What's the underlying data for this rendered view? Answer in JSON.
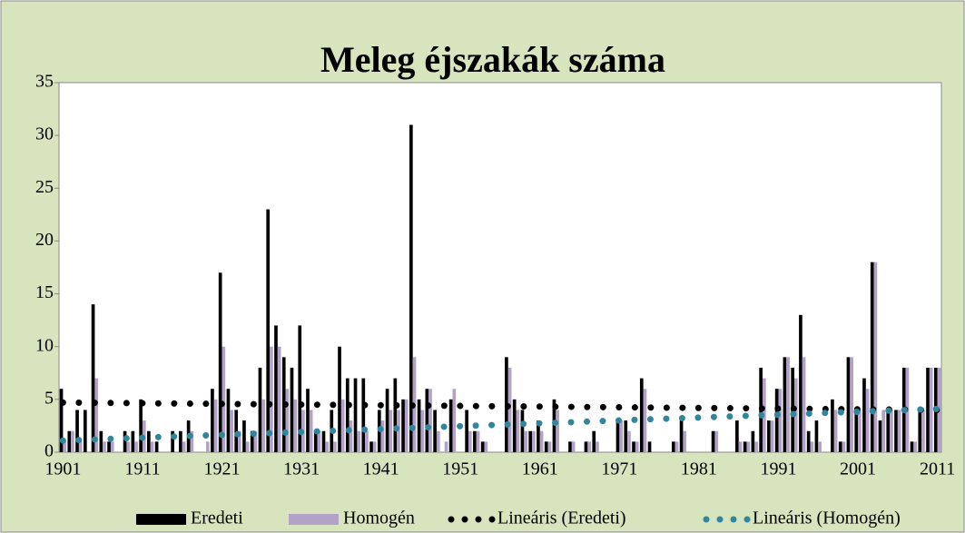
{
  "chart_data": {
    "type": "bar",
    "title": "Meleg éjszakák száma",
    "categories": [
      "1901",
      null,
      null,
      null,
      null,
      null,
      null,
      null,
      null,
      null,
      "1911",
      null,
      null,
      null,
      null,
      null,
      null,
      null,
      null,
      null,
      "1921",
      null,
      null,
      null,
      null,
      null,
      null,
      null,
      null,
      null,
      "1931",
      null,
      null,
      null,
      null,
      null,
      null,
      null,
      null,
      null,
      "1941",
      null,
      null,
      null,
      null,
      null,
      null,
      null,
      null,
      null,
      "1951",
      null,
      null,
      null,
      null,
      null,
      null,
      null,
      null,
      null,
      "1961",
      null,
      null,
      null,
      null,
      null,
      null,
      null,
      null,
      null,
      "1971",
      null,
      null,
      null,
      null,
      null,
      null,
      null,
      null,
      null,
      "1981",
      null,
      null,
      null,
      null,
      null,
      null,
      null,
      null,
      null,
      "1991",
      null,
      null,
      null,
      null,
      null,
      null,
      null,
      null,
      null,
      "2001",
      null,
      null,
      null,
      null,
      null,
      null,
      null,
      null,
      null,
      "2011"
    ],
    "series": [
      {
        "name": "Eredeti",
        "color": "#000000",
        "values": [
          6,
          2,
          4,
          4,
          14,
          2,
          1,
          0,
          2,
          2,
          5,
          2,
          1,
          0,
          2,
          2,
          3,
          0,
          0,
          6,
          17,
          6,
          4,
          3,
          2,
          8,
          23,
          12,
          9,
          8,
          12,
          6,
          2,
          2,
          4,
          10,
          7,
          7,
          7,
          1,
          4,
          6,
          7,
          5,
          31,
          5,
          6,
          4,
          0,
          5,
          0,
          4,
          2,
          1,
          0,
          0,
          9,
          5,
          4,
          2,
          3,
          1,
          5,
          0,
          1,
          0,
          1,
          2,
          0,
          0,
          3,
          3,
          1,
          7,
          1,
          0,
          0,
          1,
          3,
          0,
          0,
          0,
          2,
          0,
          0,
          3,
          1,
          2,
          8,
          3,
          6,
          9,
          8,
          13,
          2,
          3,
          0,
          5,
          1,
          9,
          4,
          7,
          18,
          3,
          4,
          4,
          8,
          1,
          4,
          8,
          8
        ]
      },
      {
        "name": "Homogén",
        "color": "#b3a2c7",
        "values": [
          1,
          2,
          1,
          0,
          7,
          1,
          1,
          0,
          1,
          1,
          3,
          1,
          0,
          0,
          0,
          1,
          2,
          0,
          1,
          5,
          10,
          4,
          2,
          1,
          2,
          5,
          10,
          10,
          6,
          5,
          4,
          4,
          2,
          1,
          1,
          5,
          3,
          2,
          2,
          1,
          3,
          4,
          4,
          5,
          9,
          4,
          6,
          2,
          1,
          6,
          0,
          2,
          2,
          1,
          0,
          0,
          8,
          4,
          2,
          2,
          2,
          1,
          4,
          0,
          1,
          0,
          1,
          1,
          0,
          0,
          3,
          2,
          1,
          6,
          0,
          0,
          0,
          1,
          2,
          0,
          0,
          0,
          2,
          0,
          0,
          1,
          1,
          1,
          7,
          3,
          6,
          9,
          7,
          9,
          1,
          1,
          0,
          4,
          1,
          9,
          4,
          6,
          18,
          4,
          4,
          4,
          8,
          1,
          4,
          8,
          8
        ]
      }
    ],
    "trendlines": [
      {
        "name": "Lineáris (Eredeti)",
        "color": "#000000",
        "values": [
          4.7,
          4.0
        ]
      },
      {
        "name": "Lineáris (Homogén)",
        "color": "#31859c",
        "values": [
          1.1,
          4.1
        ]
      }
    ],
    "ylim": [
      0,
      35
    ],
    "yticks": [
      0,
      5,
      10,
      15,
      20,
      25,
      30,
      35
    ],
    "legend": "bottom"
  }
}
